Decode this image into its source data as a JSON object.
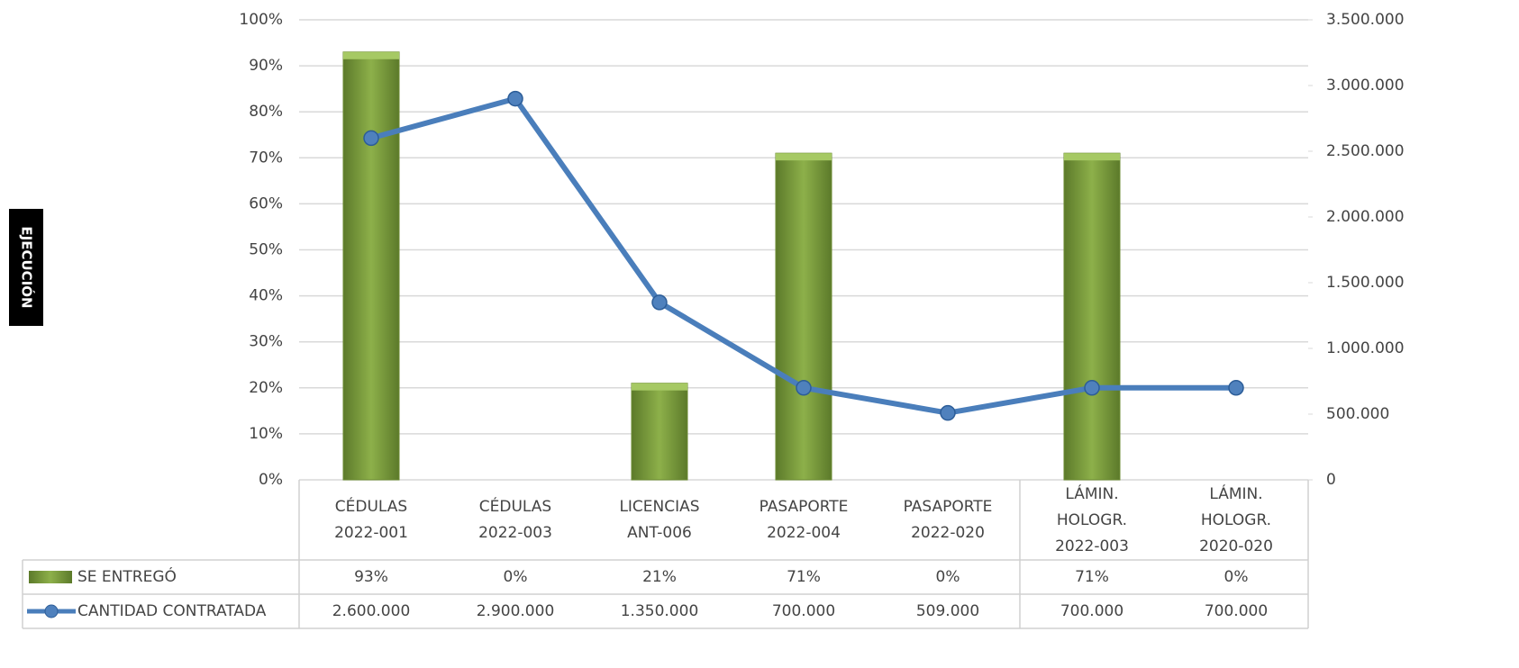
{
  "chart_data": {
    "type": "bar_line",
    "y_label": "EJECUCIÓN",
    "categories": [
      "CÉDULAS\n2022-001",
      "CÉDULAS\n2022-003",
      "LICENCIAS\nANT-006",
      "PASAPORTE\n2022-004",
      "PASAPORTE\n2022-020",
      "LÁMIN.\nHOLOGR.\n2022-003",
      "LÁMIN.\nHOLOGR.\n2020-020"
    ],
    "series": [
      {
        "name": "SE ENTREGÓ",
        "type": "bar",
        "color": "#77933c",
        "values": [
          93,
          0,
          21,
          71,
          0,
          71,
          0
        ],
        "value_labels": [
          "93%",
          "0%",
          "21%",
          "71%",
          "0%",
          "71%",
          "0%"
        ]
      },
      {
        "name": "CANTIDAD CONTRATADA",
        "type": "line",
        "axis": "y2",
        "color": "#4a7ebb",
        "values": [
          2600000,
          2900000,
          1350000,
          700000,
          509000,
          700000,
          700000
        ],
        "value_labels": [
          "2.600.000",
          "2.900.000",
          "1.350.000",
          "700.000",
          "509.000",
          "700.000",
          "700.000"
        ]
      }
    ],
    "ylim": [
      0,
      100
    ],
    "yticks": [
      {
        "value": 0,
        "label": "0%"
      },
      {
        "value": 10,
        "label": "10%"
      },
      {
        "value": 20,
        "label": "20%"
      },
      {
        "value": 30,
        "label": "30%"
      },
      {
        "value": 40,
        "label": "40%"
      },
      {
        "value": 50,
        "label": "50%"
      },
      {
        "value": 60,
        "label": "60%"
      },
      {
        "value": 70,
        "label": "70%"
      },
      {
        "value": 80,
        "label": "80%"
      },
      {
        "value": 90,
        "label": "90%"
      },
      {
        "value": 100,
        "label": "100%"
      }
    ],
    "y2lim": [
      0,
      3500000
    ],
    "y2ticks": [
      0,
      {
        "value": 500000,
        "label": "500.000"
      },
      {
        "value": 1000000,
        "label": "1.000.000"
      },
      {
        "value": 1500000,
        "label": "1.500.000"
      },
      {
        "value": 2000000,
        "label": "2.000.000"
      },
      {
        "value": 2500000,
        "label": "2.500.000"
      },
      {
        "value": 3000000,
        "label": "3.000.000"
      },
      {
        "value": 3500000,
        "label": "3.500.000"
      }
    ],
    "grid": true
  }
}
